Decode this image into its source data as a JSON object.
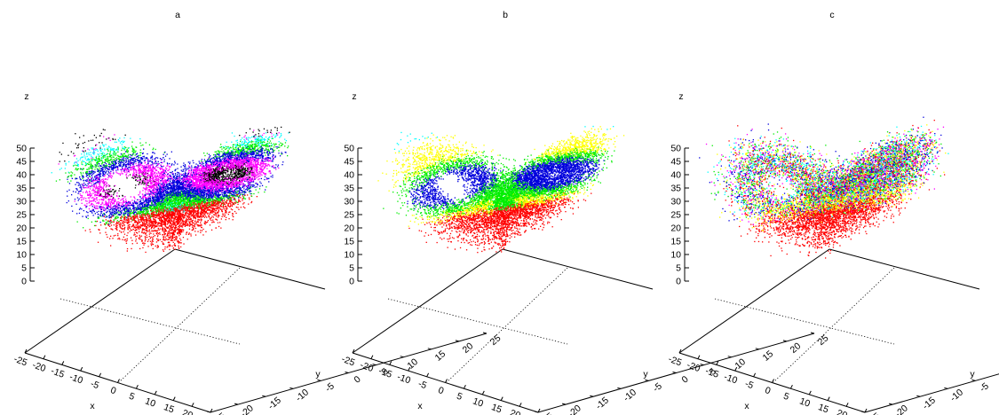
{
  "chart_data": [
    {
      "type": "scatter",
      "title": "a",
      "xlabel": "x",
      "ylabel": "y",
      "zlabel": "z",
      "xlim": [
        -25,
        25
      ],
      "ylim": [
        -25,
        25
      ],
      "zlim": [
        0,
        50
      ],
      "x_ticks": [
        "-25",
        "-20",
        "-15",
        "-10",
        "-5",
        "0",
        "5",
        "10",
        "15",
        "20",
        "25"
      ],
      "y_ticks": [
        "-25",
        "-20",
        "-15",
        "-10",
        "-5",
        "0",
        "5",
        "10",
        "15",
        "20",
        "25"
      ],
      "z_ticks": [
        "0",
        "5",
        "10",
        "15",
        "20",
        "25",
        "30",
        "35",
        "40",
        "45",
        "50"
      ],
      "grid": true,
      "projection": "3d",
      "point_cloud": "lorenz-attractor",
      "colors": [
        "#000000",
        "#0000dd",
        "#ff00ff",
        "#00ee00",
        "#00ffff",
        "#ffff00",
        "#ff0000"
      ],
      "coloring": "banded"
    },
    {
      "type": "scatter",
      "title": "b",
      "xlabel": "x",
      "ylabel": "y",
      "zlabel": "z",
      "xlim": [
        -25,
        25
      ],
      "ylim": [
        -25,
        25
      ],
      "zlim": [
        0,
        50
      ],
      "x_ticks": [
        "-25",
        "-20",
        "-15",
        "-10",
        "-5",
        "0",
        "5",
        "10",
        "15",
        "20",
        "25"
      ],
      "y_ticks": [
        "-25",
        "-20",
        "-15",
        "-10",
        "-5",
        "0",
        "5",
        "10",
        "15",
        "20",
        "25"
      ],
      "z_ticks": [
        "0",
        "5",
        "10",
        "15",
        "20",
        "25",
        "30",
        "35",
        "40",
        "45",
        "50"
      ],
      "grid": true,
      "projection": "3d",
      "point_cloud": "lorenz-attractor",
      "colors": [
        "#0000dd",
        "#ff00ff",
        "#00ee00",
        "#00ffff",
        "#ffff00",
        "#ff0000"
      ],
      "coloring": "regions"
    },
    {
      "type": "scatter",
      "title": "c",
      "xlabel": "x",
      "ylabel": "y",
      "zlabel": "z",
      "xlim": [
        -25,
        25
      ],
      "ylim": [
        -25,
        25
      ],
      "zlim": [
        0,
        50
      ],
      "x_ticks": [
        "-25",
        "-20",
        "-15",
        "-10",
        "-5",
        "0",
        "5",
        "10",
        "15",
        "20",
        "25"
      ],
      "y_ticks": [
        "-25",
        "-20",
        "-15",
        "-10",
        "-5",
        "0",
        "5",
        "10",
        "15",
        "20",
        "25"
      ],
      "z_ticks": [
        "0",
        "5",
        "10",
        "15",
        "20",
        "25",
        "30",
        "35",
        "40",
        "45",
        "50"
      ],
      "grid": true,
      "projection": "3d",
      "point_cloud": "lorenz-attractor",
      "colors": [
        "#0000dd",
        "#ff00ff",
        "#00ee00",
        "#00ffff",
        "#ffff00",
        "#ff0000"
      ],
      "coloring": "mixed"
    }
  ]
}
